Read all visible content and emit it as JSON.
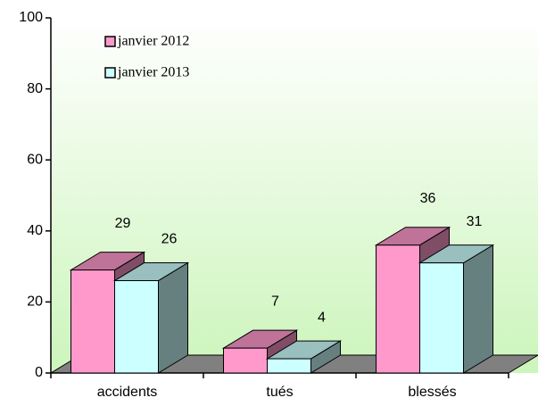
{
  "chart_data": {
    "type": "bar",
    "categories": [
      "accidents",
      "tués",
      "blessés"
    ],
    "series": [
      {
        "name": "janvier 2012",
        "color": "#ff99cc",
        "values": [
          29,
          7,
          36
        ]
      },
      {
        "name": "janvier 2013",
        "color": "#ccffff",
        "values": [
          26,
          4,
          31
        ]
      }
    ],
    "ylim": [
      0,
      100
    ],
    "yticks": [
      0,
      20,
      40,
      60,
      80,
      100
    ],
    "legend": "top-left"
  }
}
